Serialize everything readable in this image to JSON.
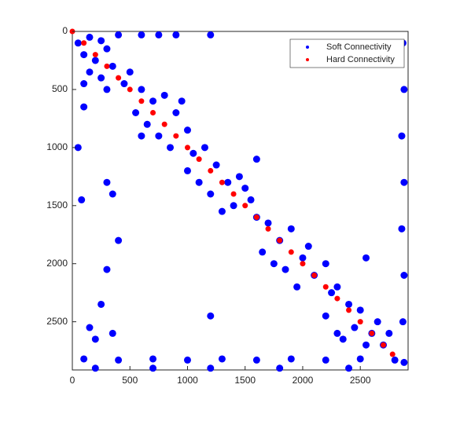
{
  "chart_data": {
    "type": "scatter",
    "y_reversed": true,
    "xlim": [
      0,
      2915
    ],
    "ylim": [
      0,
      2915
    ],
    "xticks": [
      0,
      500,
      1000,
      1500,
      2000,
      2500
    ],
    "yticks": [
      0,
      500,
      1000,
      1500,
      2000,
      2500
    ],
    "legend": "upper-right",
    "series": [
      {
        "name": "Soft Connectivity",
        "color": "#0000ff",
        "x": [
          50,
          150,
          250,
          400,
          100,
          200,
          300,
          150,
          250,
          350,
          450,
          100,
          300,
          500,
          600,
          750,
          900,
          1200,
          600,
          700,
          550,
          800,
          650,
          900,
          750,
          1000,
          850,
          1050,
          600,
          950,
          1150,
          1000,
          1250,
          1350,
          1200,
          1450,
          1300,
          1550,
          1600,
          1100,
          1400,
          1500,
          1700,
          1800,
          1650,
          1900,
          2000,
          1850,
          2100,
          2200,
          1950,
          2250,
          1750,
          2050,
          2300,
          2400,
          2200,
          2500,
          2600,
          2450,
          2700,
          2550,
          2350,
          2650,
          2750,
          100,
          50,
          300,
          350,
          80,
          250,
          150,
          350,
          200,
          300,
          1200,
          1600,
          2550,
          2300,
          400,
          2870,
          2880,
          2860,
          2880,
          2860,
          2880,
          2870,
          2880,
          100,
          400,
          700,
          1000,
          1300,
          1600,
          1900,
          2200,
          2500,
          2800,
          200,
          700,
          1200,
          1800,
          2400
        ],
        "y": [
          100,
          50,
          80,
          30,
          200,
          250,
          150,
          350,
          400,
          300,
          450,
          450,
          500,
          350,
          30,
          30,
          30,
          30,
          500,
          600,
          700,
          550,
          800,
          700,
          900,
          850,
          1000,
          1050,
          900,
          600,
          1000,
          1200,
          1150,
          1300,
          1400,
          1250,
          1550,
          1450,
          1600,
          1300,
          1500,
          1350,
          1650,
          1800,
          1900,
          1700,
          1950,
          2050,
          2100,
          2000,
          2200,
          2250,
          2000,
          1850,
          2200,
          2350,
          2450,
          2400,
          2600,
          2550,
          2700,
          2700,
          2650,
          2500,
          2600,
          650,
          1000,
          1300,
          1400,
          1450,
          2350,
          2550,
          2600,
          2650,
          2050,
          2450,
          1100,
          1950,
          2600,
          1800,
          100,
          500,
          900,
          1300,
          1700,
          2100,
          2500,
          2850,
          2820,
          2830,
          2820,
          2830,
          2820,
          2830,
          2820,
          2830,
          2820,
          2830,
          2900,
          2900,
          2900,
          2900,
          2900
        ]
      },
      {
        "name": "Hard Connectivity",
        "color": "#ff0000",
        "x": [
          0,
          100,
          200,
          300,
          400,
          500,
          600,
          700,
          800,
          900,
          1000,
          1100,
          1200,
          1300,
          1400,
          1500,
          1600,
          1700,
          1800,
          1900,
          2000,
          2100,
          2200,
          2300,
          2400,
          2500,
          2600,
          2700,
          2780
        ],
        "y": [
          0,
          100,
          200,
          300,
          400,
          500,
          600,
          700,
          800,
          900,
          1000,
          1100,
          1200,
          1300,
          1400,
          1500,
          1600,
          1700,
          1800,
          1900,
          2000,
          2100,
          2200,
          2300,
          2400,
          2500,
          2600,
          2700,
          2780
        ]
      }
    ]
  }
}
